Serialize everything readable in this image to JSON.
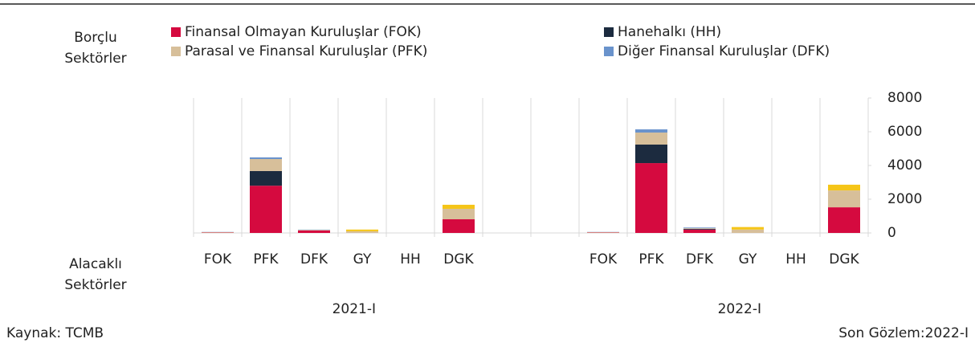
{
  "chart_data": {
    "type": "stacked-bar",
    "row_label_top": "Borçlu Sektörler",
    "row_label_bottom": "Alacaklı Sektörler",
    "source": "Kaynak: TCMB",
    "last_observation": "Son Gözlem:2022-I",
    "categories": [
      "FOK",
      "PFK",
      "DFK",
      "GY",
      "HH",
      "DGK",
      null,
      null,
      "FOK",
      "PFK",
      "DFK",
      "GY",
      "HH",
      "DGK"
    ],
    "groups": [
      "2021-I",
      "2022-I"
    ],
    "series": [
      {
        "name": "Finansal Olmayan Kuruluşlar (FOK)",
        "color": "#d50a3f",
        "values": [
          20,
          2800,
          150,
          0,
          0,
          810,
          null,
          null,
          20,
          4140,
          200,
          0,
          0,
          1520
        ]
      },
      {
        "name": "Hanehalkı (HH)",
        "color": "#1c2b3f",
        "values": [
          0,
          870,
          0,
          0,
          0,
          0,
          null,
          null,
          0,
          1100,
          40,
          0,
          0,
          0
        ]
      },
      {
        "name": "Parasal ve Finansal Kuruluşlar (PFK)",
        "color": "#d7bf9a",
        "values": [
          30,
          710,
          30,
          100,
          0,
          620,
          null,
          null,
          30,
          710,
          40,
          200,
          0,
          1000
        ]
      },
      {
        "name": "Diğer Finansal Kuruluşlar (DFK)",
        "color": "#6a93cc",
        "values": [
          10,
          100,
          20,
          0,
          0,
          0,
          null,
          null,
          10,
          190,
          40,
          0,
          0,
          0
        ]
      },
      {
        "color": "#f5c518",
        "values": [
          0,
          0,
          0,
          100,
          0,
          240,
          null,
          null,
          0,
          0,
          0,
          150,
          0,
          340
        ]
      }
    ],
    "ylim": [
      0,
      8000
    ],
    "yticks": [
      0,
      2000,
      4000,
      6000,
      8000
    ]
  }
}
